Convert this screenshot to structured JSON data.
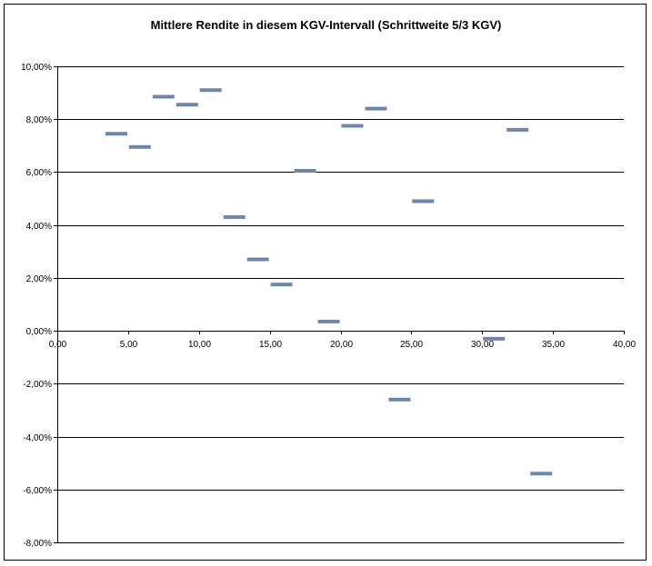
{
  "chart_data": {
    "type": "scatter",
    "marker": "dash",
    "title": "Mittlere Rendite in diesem KGV-Intervall (Schrittweite 5/3 KGV)",
    "xlabel": "",
    "ylabel": "",
    "xlim": [
      0,
      40
    ],
    "ylim": [
      -8,
      10
    ],
    "x_ticks": [
      0,
      5,
      10,
      15,
      20,
      25,
      30,
      35,
      40
    ],
    "x_tick_labels": [
      "0,00",
      "5,00",
      "10,00",
      "15,00",
      "20,00",
      "25,00",
      "30,00",
      "35,00",
      "40,00"
    ],
    "y_ticks": [
      10,
      8,
      6,
      4,
      2,
      0,
      -2,
      -4,
      -6,
      -8
    ],
    "y_tick_labels": [
      "10,00%",
      "8,00%",
      "6,00%",
      "4,00%",
      "2,00%",
      "0,00%",
      "-2,00%",
      "-4,00%",
      "-6,00%",
      "-8,00%"
    ],
    "grid": "horizontal",
    "marker_color": "#6d87ab",
    "x": [
      4.17,
      5.83,
      7.5,
      9.17,
      10.83,
      12.5,
      14.17,
      15.83,
      17.5,
      19.17,
      20.83,
      22.5,
      24.17,
      25.83,
      30.83,
      32.5,
      34.17
    ],
    "y": [
      7.45,
      6.95,
      8.85,
      8.55,
      9.1,
      4.3,
      2.7,
      1.75,
      6.05,
      0.35,
      7.75,
      8.4,
      -2.6,
      4.9,
      -0.3,
      7.6,
      -5.4
    ]
  }
}
